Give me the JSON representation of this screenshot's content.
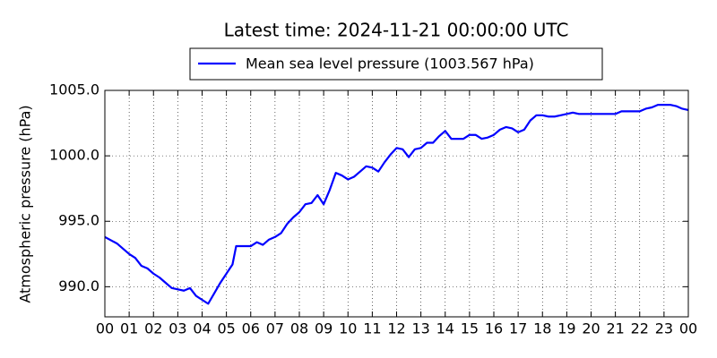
{
  "chart_data": {
    "type": "line",
    "title": "Latest time: 2024-11-21 00:00:00 UTC",
    "y_label": "Atmospheric pressure (hPa)",
    "legend": "upper center",
    "grid": true,
    "xlim": [
      0,
      24
    ],
    "ylim": [
      987.7,
      1005.0
    ],
    "yticks": [
      {
        "value": 990,
        "label": "990.0"
      },
      {
        "value": 995,
        "label": "995.0"
      },
      {
        "value": 1000,
        "label": "1000.0"
      },
      {
        "value": 1005,
        "label": "1005.0"
      }
    ],
    "xticks": [
      {
        "value": 0,
        "label": "00"
      },
      {
        "value": 1,
        "label": "01"
      },
      {
        "value": 2,
        "label": "02"
      },
      {
        "value": 3,
        "label": "03"
      },
      {
        "value": 4,
        "label": "04"
      },
      {
        "value": 5,
        "label": "05"
      },
      {
        "value": 6,
        "label": "06"
      },
      {
        "value": 7,
        "label": "07"
      },
      {
        "value": 8,
        "label": "08"
      },
      {
        "value": 9,
        "label": "09"
      },
      {
        "value": 10,
        "label": "10"
      },
      {
        "value": 11,
        "label": "11"
      },
      {
        "value": 12,
        "label": "12"
      },
      {
        "value": 13,
        "label": "13"
      },
      {
        "value": 14,
        "label": "14"
      },
      {
        "value": 15,
        "label": "15"
      },
      {
        "value": 16,
        "label": "16"
      },
      {
        "value": 17,
        "label": "17"
      },
      {
        "value": 18,
        "label": "18"
      },
      {
        "value": 19,
        "label": "19"
      },
      {
        "value": 20,
        "label": "20"
      },
      {
        "value": 21,
        "label": "21"
      },
      {
        "value": 22,
        "label": "22"
      },
      {
        "value": 23,
        "label": "23"
      },
      {
        "value": 24,
        "label": "00"
      }
    ],
    "x": [
      0,
      0.5,
      1,
      1.25,
      1.5,
      1.75,
      2,
      2.25,
      2.5,
      2.75,
      3,
      3.25,
      3.5,
      3.75,
      4,
      4.25,
      4.5,
      4.75,
      5,
      5.25,
      5.4,
      5.6,
      6,
      6.25,
      6.5,
      6.75,
      7,
      7.25,
      7.5,
      7.75,
      8,
      8.25,
      8.5,
      8.75,
      9,
      9.25,
      9.5,
      9.75,
      10,
      10.25,
      10.5,
      10.75,
      11,
      11.25,
      11.5,
      11.75,
      12,
      12.25,
      12.5,
      12.75,
      13,
      13.25,
      13.5,
      13.75,
      14,
      14.25,
      14.5,
      14.75,
      15,
      15.25,
      15.5,
      15.75,
      16,
      16.25,
      16.5,
      16.75,
      17,
      17.25,
      17.5,
      17.75,
      18,
      18.25,
      18.5,
      18.75,
      19,
      19.25,
      19.5,
      19.75,
      20,
      20.5,
      21,
      21.25,
      21.5,
      21.75,
      22,
      22.25,
      22.5,
      22.75,
      23,
      23.25,
      23.5,
      23.75,
      24
    ],
    "series": [
      {
        "name": "Mean sea level pressure (1003.567 hPa)",
        "color": "#0000ff",
        "values": [
          993.8,
          993.3,
          992.5,
          992.2,
          991.6,
          991.4,
          991.0,
          990.7,
          990.3,
          989.9,
          989.8,
          989.7,
          989.9,
          989.3,
          989.0,
          988.7,
          989.5,
          990.3,
          991.0,
          991.7,
          993.1,
          993.1,
          993.1,
          993.4,
          993.2,
          993.6,
          993.8,
          994.1,
          994.8,
          995.3,
          995.7,
          996.3,
          996.4,
          997.0,
          996.3,
          997.4,
          998.7,
          998.5,
          998.2,
          998.4,
          998.8,
          999.2,
          999.1,
          998.8,
          999.5,
          1000.1,
          1000.6,
          1000.5,
          999.9,
          1000.5,
          1000.6,
          1001.0,
          1001.0,
          1001.5,
          1001.9,
          1001.3,
          1001.3,
          1001.3,
          1001.6,
          1001.6,
          1001.3,
          1001.4,
          1001.6,
          1002.0,
          1002.2,
          1002.1,
          1001.8,
          1002.0,
          1002.7,
          1003.1,
          1003.1,
          1003.0,
          1003.0,
          1003.1,
          1003.2,
          1003.3,
          1003.2,
          1003.2,
          1003.2,
          1003.2,
          1003.2,
          1003.4,
          1003.4,
          1003.4,
          1003.4,
          1003.6,
          1003.7,
          1003.9,
          1003.9,
          1003.9,
          1003.8,
          1003.6,
          1003.5
        ]
      }
    ]
  }
}
